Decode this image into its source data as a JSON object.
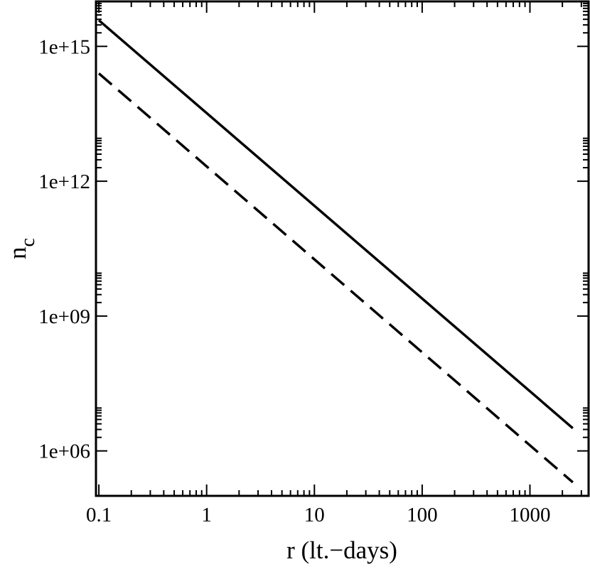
{
  "chart_data": {
    "type": "line",
    "x_label": "r (lt.−days)",
    "y_label": {
      "text": "n",
      "subscript": "c"
    },
    "x": [
      0.1,
      2500
    ],
    "series": [
      {
        "color": "#000000",
        "dashed": false,
        "values": [
          3800000000000000.0,
          3200000.0
        ]
      },
      {
        "color": "#000000",
        "dashed": true,
        "values": [
          250000000000000.0,
          200000.0
        ]
      }
    ],
    "xlim": [
      0.094,
      3500
    ],
    "ylim": [
      100000.0,
      1e+16
    ],
    "xticks": [
      0.1,
      1,
      10,
      100,
      1000
    ],
    "yticks": [
      {
        "value": 1000000.0,
        "label": "1e+06"
      },
      {
        "value": 1000000000.0,
        "label": "1e+09"
      },
      {
        "value": 1000000000000.0,
        "label": "1e+12"
      },
      {
        "value": 1000000000000000.0,
        "label": "1e+15"
      }
    ],
    "log_x": true,
    "log_y": true,
    "minor_ticks": true,
    "mirror_ticks": true
  }
}
